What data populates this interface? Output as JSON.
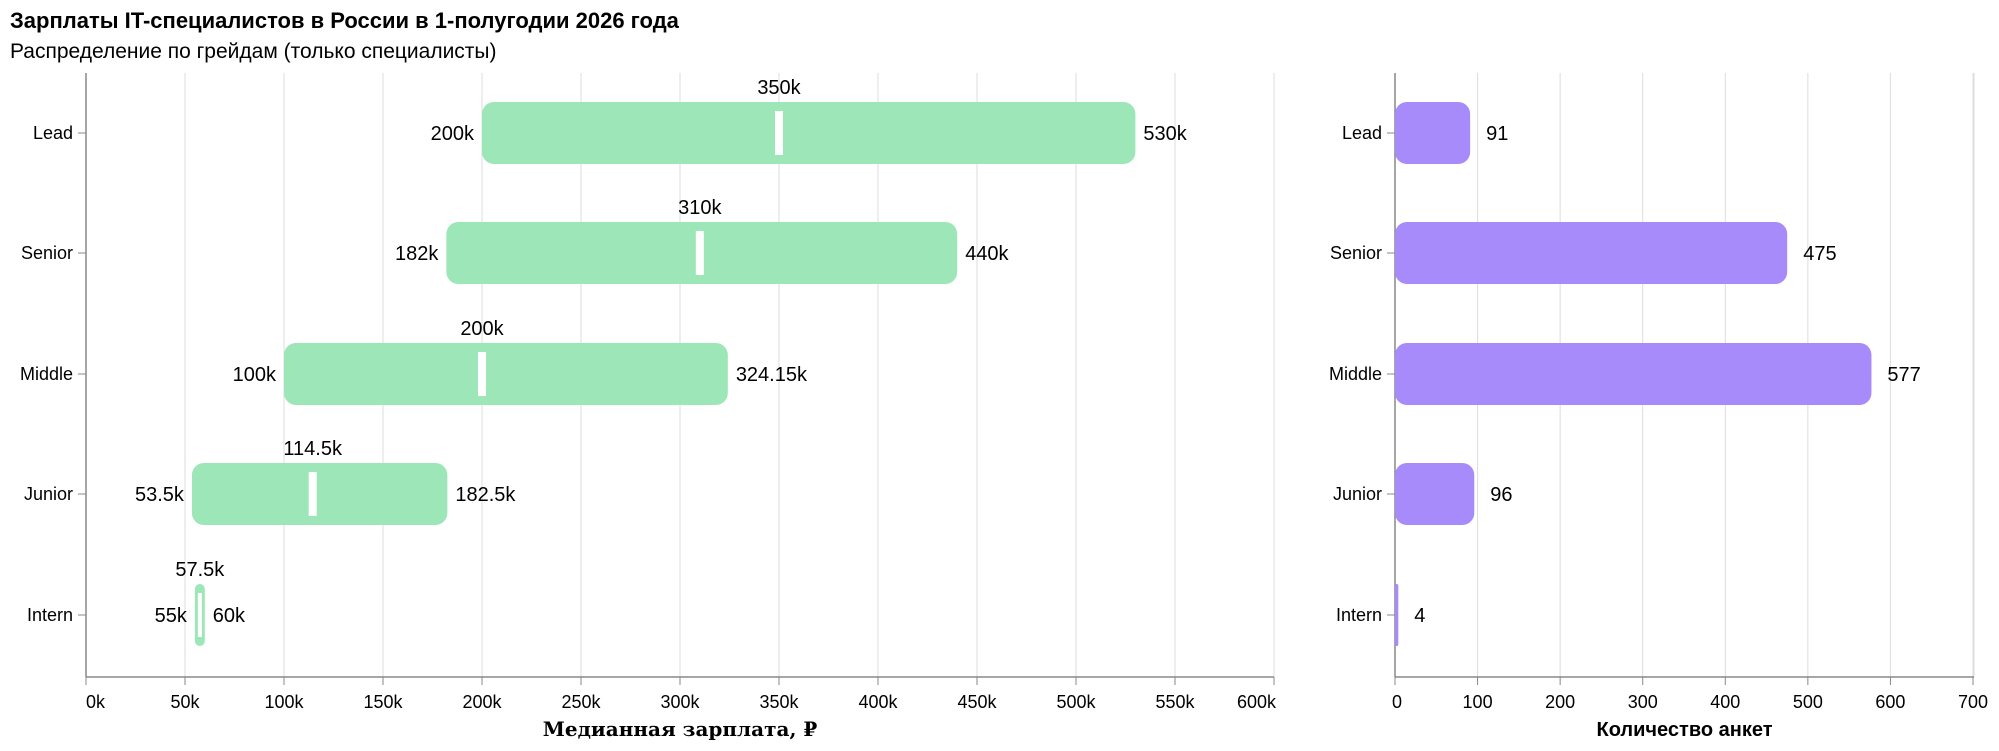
{
  "title": "Зарплаты IT-специалистов в России в 1-полугодии 2026 года",
  "subtitle": "Распределение по грейдам (только специалисты)",
  "colors": {
    "range": "#9ce6b7",
    "count": "#a78bfa",
    "grid": "#dddddd",
    "axis": "#888888",
    "median": "#ffffff"
  },
  "chart_data": [
    {
      "type": "bar",
      "subtype": "range",
      "xlabel": "Медианная зарплата, ₽",
      "xlim": [
        0,
        600000
      ],
      "x_ticks": [
        {
          "value": 0,
          "label": "0k"
        },
        {
          "value": 50000,
          "label": "50k"
        },
        {
          "value": 100000,
          "label": "100k"
        },
        {
          "value": 150000,
          "label": "150k"
        },
        {
          "value": 200000,
          "label": "200k"
        },
        {
          "value": 250000,
          "label": "250k"
        },
        {
          "value": 300000,
          "label": "300k"
        },
        {
          "value": 350000,
          "label": "350k"
        },
        {
          "value": 400000,
          "label": "400k"
        },
        {
          "value": 450000,
          "label": "450k"
        },
        {
          "value": 500000,
          "label": "500k"
        },
        {
          "value": 550000,
          "label": "550k"
        },
        {
          "value": 600000,
          "label": "600k"
        }
      ],
      "categories": [
        "Lead",
        "Senior",
        "Middle",
        "Junior",
        "Intern"
      ],
      "rows": [
        {
          "grade": "Lead",
          "min": 200000,
          "median": 350000,
          "max": 530000,
          "min_label": "200k",
          "median_label": "350k",
          "max_label": "530k"
        },
        {
          "grade": "Senior",
          "min": 182000,
          "median": 310000,
          "max": 440000,
          "min_label": "182k",
          "median_label": "310k",
          "max_label": "440k"
        },
        {
          "grade": "Middle",
          "min": 100000,
          "median": 200000,
          "max": 324150,
          "min_label": "100k",
          "median_label": "200k",
          "max_label": "324.15k"
        },
        {
          "grade": "Junior",
          "min": 53500,
          "median": 114500,
          "max": 182500,
          "min_label": "53.5k",
          "median_label": "114.5k",
          "max_label": "182.5k"
        },
        {
          "grade": "Intern",
          "min": 55000,
          "median": 57500,
          "max": 60000,
          "min_label": "55k",
          "median_label": "57.5k",
          "max_label": "60k"
        }
      ],
      "grid": true
    },
    {
      "type": "bar",
      "xlabel": "Количество анкет",
      "xlim": [
        0,
        700
      ],
      "x_ticks": [
        {
          "value": 0,
          "label": "0"
        },
        {
          "value": 100,
          "label": "100"
        },
        {
          "value": 200,
          "label": "200"
        },
        {
          "value": 300,
          "label": "300"
        },
        {
          "value": 400,
          "label": "400"
        },
        {
          "value": 500,
          "label": "500"
        },
        {
          "value": 600,
          "label": "600"
        },
        {
          "value": 700,
          "label": "700"
        }
      ],
      "categories": [
        "Lead",
        "Senior",
        "Middle",
        "Junior",
        "Intern"
      ],
      "values": [
        91,
        475,
        577,
        96,
        4
      ],
      "value_labels": [
        "91",
        "475",
        "577",
        "96",
        "4"
      ],
      "grid": true
    }
  ]
}
